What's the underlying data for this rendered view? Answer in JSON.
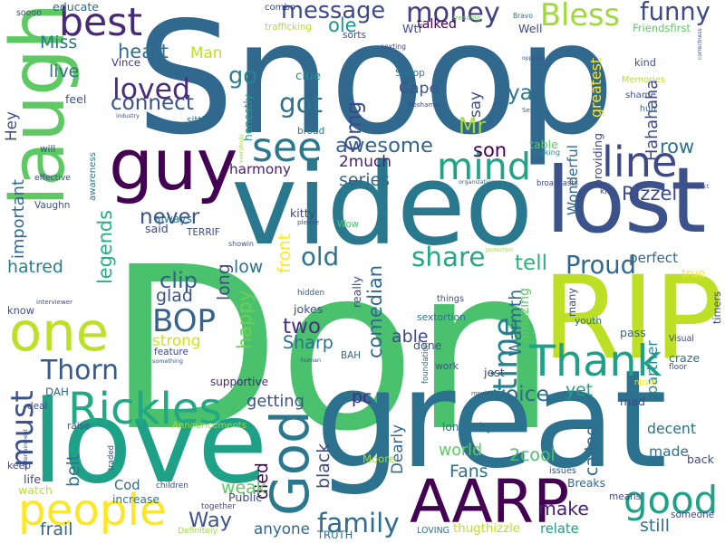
{
  "words": [
    {
      "text": "Snoop",
      "color": "#31688e"
    },
    {
      "text": "Don",
      "color": "#4ac16d"
    },
    {
      "text": "great",
      "color": "#2c728e"
    },
    {
      "text": "video",
      "color": "#2a788e"
    },
    {
      "text": "love",
      "color": "#1fa187"
    },
    {
      "text": "laugh",
      "color": "#5ec962"
    },
    {
      "text": "guy",
      "color": "#440154"
    },
    {
      "text": "RIP",
      "color": "#bddf26"
    },
    {
      "text": "lost",
      "color": "#3b528b"
    },
    {
      "text": "AARP",
      "color": "#440154"
    },
    {
      "text": "one",
      "color": "#bddf26"
    },
    {
      "text": "God",
      "color": "#2a788e"
    },
    {
      "text": "people",
      "color": "#fde725"
    },
    {
      "text": "Rickles",
      "color": "#22a884"
    },
    {
      "text": "Thank",
      "color": "#1fa187"
    },
    {
      "text": "time",
      "color": "#26828e"
    },
    {
      "text": "line",
      "color": "#3e4989"
    },
    {
      "text": "good",
      "color": "#1fa187"
    },
    {
      "text": "mind",
      "color": "#20a486"
    },
    {
      "text": "best",
      "color": "#482878"
    },
    {
      "text": "must",
      "color": "#3b528b"
    },
    {
      "text": "see",
      "color": "#2a788e"
    },
    {
      "text": "Thorn",
      "color": "#375a8c"
    },
    {
      "text": "BOP",
      "color": "#33638d"
    },
    {
      "text": "message",
      "color": "#3e4989"
    },
    {
      "text": "money",
      "color": "#433e85"
    },
    {
      "text": "Bless",
      "color": "#a0da39"
    },
    {
      "text": "funny",
      "color": "#3e4989"
    },
    {
      "text": "awesome",
      "color": "#32648e"
    },
    {
      "text": "Mr",
      "color": "#a5db36"
    },
    {
      "text": "loved",
      "color": "#472d7b"
    },
    {
      "text": "got",
      "color": "#2c738e"
    },
    {
      "text": "go",
      "color": "#26828e"
    },
    {
      "text": "family",
      "color": "#2f6c8e"
    },
    {
      "text": "voice",
      "color": "#306a8e"
    },
    {
      "text": "make",
      "color": "#481f70"
    },
    {
      "text": "share",
      "color": "#22a884"
    },
    {
      "text": "tell",
      "color": "#2db27d"
    },
    {
      "text": "Proud",
      "color": "#31688e"
    },
    {
      "text": "old",
      "color": "#2c738e"
    },
    {
      "text": "Way",
      "color": "#3b528b"
    },
    {
      "text": "two",
      "color": "#46327e"
    },
    {
      "text": "Sharp",
      "color": "#2c728e"
    },
    {
      "text": "important",
      "color": "#31688e"
    },
    {
      "text": "legends",
      "color": "#28ae80"
    },
    {
      "text": "hatred",
      "color": "#277f8e"
    },
    {
      "text": "clip",
      "color": "#365d8d"
    },
    {
      "text": "never",
      "color": "#3b528b"
    },
    {
      "text": "harmony",
      "color": "#482173"
    },
    {
      "text": "connect",
      "color": "#3b528b"
    },
    {
      "text": "heart",
      "color": "#2d708e"
    },
    {
      "text": "Hahahaha",
      "color": "#3f4788"
    },
    {
      "text": "opposite",
      "color": "#3b528b"
    },
    {
      "text": "ya",
      "color": "#2a788e"
    },
    {
      "text": "Cape",
      "color": "#3b528b"
    },
    {
      "text": "Omg",
      "color": "#3e4989"
    },
    {
      "text": "honestly",
      "color": "#1f9e89"
    },
    {
      "text": "clue",
      "color": "#21918c"
    },
    {
      "text": "ole",
      "color": "#1f968b"
    },
    {
      "text": "talked",
      "color": "#440154"
    },
    {
      "text": "combo",
      "color": "#3e4989"
    },
    {
      "text": "Man",
      "color": "#bddf26"
    },
    {
      "text": "Vince",
      "color": "#443983"
    },
    {
      "text": "live",
      "color": "#2c728e"
    },
    {
      "text": "Miss",
      "color": "#2a788e"
    },
    {
      "text": "soooo",
      "color": "#3e4989"
    },
    {
      "text": "Hey",
      "color": "#3e4989"
    },
    {
      "text": "Wonderful",
      "color": "#31688e"
    },
    {
      "text": "greatest",
      "color": "#fde725"
    },
    {
      "text": "Memories",
      "color": "#bddf26"
    },
    {
      "text": "shame",
      "color": "#3b528b"
    },
    {
      "text": "row",
      "color": "#2c728e"
    },
    {
      "text": "making",
      "color": "#26828e"
    },
    {
      "text": "son",
      "color": "#440154"
    },
    {
      "text": "2much",
      "color": "#481f70"
    },
    {
      "text": "series",
      "color": "#31688e"
    },
    {
      "text": "Rizzel",
      "color": "#3e4989"
    },
    {
      "text": "always",
      "color": "#2a788e"
    },
    {
      "text": "long",
      "color": "#3e4989"
    },
    {
      "text": "front",
      "color": "#fde725"
    },
    {
      "text": "low",
      "color": "#2c728e"
    },
    {
      "text": "glad",
      "color": "#3b528b"
    },
    {
      "text": "strong",
      "color": "#d2e21b"
    },
    {
      "text": "happy",
      "color": "#6ece58"
    },
    {
      "text": "supportive",
      "color": "#482878"
    },
    {
      "text": "getting",
      "color": "#3b528b"
    },
    {
      "text": "comedian",
      "color": "#31688e"
    },
    {
      "text": "sextortion",
      "color": "#2a788e"
    },
    {
      "text": "able",
      "color": "#3e4989"
    },
    {
      "text": "Warmth",
      "color": "#31688e"
    },
    {
      "text": "foundation",
      "color": "#2c728e"
    },
    {
      "text": "yet",
      "color": "#1fa187"
    },
    {
      "text": "partner",
      "color": "#23898e"
    },
    {
      "text": "perfect",
      "color": "#31688e"
    },
    {
      "text": "amazing",
      "color": "#5ec962"
    },
    {
      "text": "nizzle",
      "color": "#fde725"
    },
    {
      "text": "pc",
      "color": "#472d7b"
    },
    {
      "text": "interviewer",
      "color": "#3b528b"
    },
    {
      "text": "died",
      "color": "#440154"
    },
    {
      "text": "black",
      "color": "#3e4989"
    },
    {
      "text": "Dearly",
      "color": "#31688e"
    },
    {
      "text": "longevity",
      "color": "#2c728e"
    },
    {
      "text": "world",
      "color": "#5ec962"
    },
    {
      "text": "2cool",
      "color": "#4ac16d"
    },
    {
      "text": "called",
      "color": "#31688e"
    },
    {
      "text": "decent",
      "color": "#2c728e"
    },
    {
      "text": "made",
      "color": "#2c728e"
    },
    {
      "text": "Fans",
      "color": "#2c728e"
    },
    {
      "text": "weak",
      "color": "#5ec962"
    },
    {
      "text": "anyone",
      "color": "#31688e"
    },
    {
      "text": "Breaks",
      "color": "#31688e"
    },
    {
      "text": "still",
      "color": "#2c728e"
    },
    {
      "text": "relate",
      "color": "#1fa187"
    },
    {
      "text": "thugthizzle",
      "color": "#bddf26"
    },
    {
      "text": "increase",
      "color": "#2a788e"
    },
    {
      "text": "frail",
      "color": "#31688e"
    },
    {
      "text": "belt",
      "color": "#2c728e"
    },
    {
      "text": "Cod",
      "color": "#31688e"
    },
    {
      "text": "children",
      "color": "#3e4989"
    },
    {
      "text": "Public",
      "color": "#3e4989"
    },
    {
      "text": "LOVING",
      "color": "#2c728e"
    },
    {
      "text": "TRUTH",
      "color": "#31688e"
    },
    {
      "text": "Definitely",
      "color": "#a0da39"
    },
    {
      "text": "together",
      "color": "#3e4989"
    },
    {
      "text": "educate",
      "color": "#31688e"
    },
    {
      "text": "trafficking",
      "color": "#bddf26"
    },
    {
      "text": "trending",
      "color": "#6ece58"
    },
    {
      "text": "Bravo",
      "color": "#2c728e"
    },
    {
      "text": "Well",
      "color": "#3e4989"
    },
    {
      "text": "Friendsfirst",
      "color": "#5ec962"
    },
    {
      "text": "correctness",
      "color": "#3e4989"
    },
    {
      "text": "sorts",
      "color": "#3e4989"
    },
    {
      "text": "Wtf",
      "color": "#3e4989"
    },
    {
      "text": "sexting",
      "color": "#3e4989"
    },
    {
      "text": "Snoop",
      "color": "#2a788e"
    },
    {
      "text": "Noshame",
      "color": "#3e4989"
    },
    {
      "text": "Service",
      "color": "#31688e"
    },
    {
      "text": "kind",
      "color": "#3b528b"
    },
    {
      "text": "huh",
      "color": "#31688e"
    },
    {
      "text": "say",
      "color": "#3e4989"
    },
    {
      "text": "broad",
      "color": "#2a788e"
    },
    {
      "text": "sitting",
      "color": "#2c728e"
    },
    {
      "text": "industry",
      "color": "#3b528b"
    },
    {
      "text": "feel",
      "color": "#3b528b"
    },
    {
      "text": "will",
      "color": "#3b528b"
    },
    {
      "text": "effective",
      "color": "#3e4989"
    },
    {
      "text": "Vaughn",
      "color": "#3b528b"
    },
    {
      "text": "awareness",
      "color": "#2c728e"
    },
    {
      "text": "everybody",
      "color": "#a0da39"
    },
    {
      "text": "table",
      "color": "#5ec962"
    },
    {
      "text": "providing",
      "color": "#3e4989"
    },
    {
      "text": "organization",
      "color": "#31688e"
    },
    {
      "text": "broadcasts",
      "color": "#3e4989"
    },
    {
      "text": "respect",
      "color": "#3e4989"
    },
    {
      "text": "kids",
      "color": "#3e4989"
    },
    {
      "text": "Wow",
      "color": "#4ac16d"
    },
    {
      "text": "kitty",
      "color": "#3e4989"
    },
    {
      "text": "please",
      "color": "#3b528b"
    },
    {
      "text": "said",
      "color": "#3e4989"
    },
    {
      "text": "TERRIF",
      "color": "#3e4989"
    },
    {
      "text": "showin",
      "color": "#3b528b"
    },
    {
      "text": "really",
      "color": "#3e4989"
    },
    {
      "text": "protection",
      "color": "#a0da39"
    },
    {
      "text": "true",
      "color": "#fde725"
    },
    {
      "text": "timers",
      "color": "#3e4989"
    },
    {
      "text": "hidden",
      "color": "#3b528b"
    },
    {
      "text": "jokes",
      "color": "#3b528b"
    },
    {
      "text": "things",
      "color": "#3b528b"
    },
    {
      "text": "many",
      "color": "#3e4989"
    },
    {
      "text": "know",
      "color": "#3b528b"
    },
    {
      "text": "youth",
      "color": "#31688e"
    },
    {
      "text": "Visual",
      "color": "#3e4989"
    },
    {
      "text": "pass",
      "color": "#31688e"
    },
    {
      "text": "done",
      "color": "#3b528b"
    },
    {
      "text": "feature",
      "color": "#3e4989"
    },
    {
      "text": "something",
      "color": "#3b528b"
    },
    {
      "text": "human",
      "color": "#3e4989"
    },
    {
      "text": "BAH",
      "color": "#31688e"
    },
    {
      "text": "work",
      "color": "#3b528b"
    },
    {
      "text": "jest",
      "color": "#3e4989"
    },
    {
      "text": "craze",
      "color": "#2c728e"
    },
    {
      "text": "floor",
      "color": "#3b528b"
    },
    {
      "text": "DAH",
      "color": "#31688e"
    },
    {
      "text": "deal",
      "color": "#3e4989"
    },
    {
      "text": "movies",
      "color": "#3b528b"
    },
    {
      "text": "mad",
      "color": "#3e4989"
    },
    {
      "text": "raise",
      "color": "#3b528b"
    },
    {
      "text": "Announcements",
      "color": "#a0da39"
    },
    {
      "text": "entertainment",
      "color": "#3e4989"
    },
    {
      "text": "traded",
      "color": "#3b528b"
    },
    {
      "text": "keep",
      "color": "#3e4989"
    },
    {
      "text": "life",
      "color": "#3e4989"
    },
    {
      "text": "watch",
      "color": "#bddf26"
    },
    {
      "text": "Moore",
      "color": "#a0da39"
    },
    {
      "text": "issues",
      "color": "#3b528b"
    },
    {
      "text": "back",
      "color": "#3e4989"
    },
    {
      "text": "means",
      "color": "#3e4989"
    },
    {
      "text": "someone",
      "color": "#3e4989"
    },
    {
      "text": "concerning",
      "color": "#3b528b"
    }
  ]
}
